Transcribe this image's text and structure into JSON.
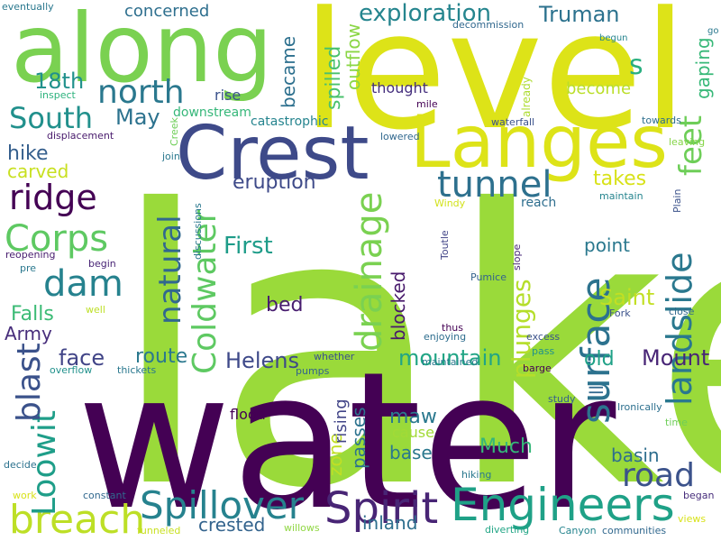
{
  "word_cloud": {
    "background": "#ffffff",
    "words": [
      {
        "text": "lake",
        "color": "#9ada3a",
        "vertical": false
      },
      {
        "text": "water",
        "color": "#440154",
        "vertical": false
      },
      {
        "text": "level",
        "color": "#dde318",
        "vertical": false
      },
      {
        "text": "along",
        "color": "#7ad151",
        "vertical": false
      },
      {
        "text": "Crest",
        "color": "#3e4a89",
        "vertical": false
      },
      {
        "text": "Langes",
        "color": "#dde318",
        "vertical": false
      },
      {
        "text": "Spirit",
        "color": "#482575",
        "vertical": false
      },
      {
        "text": "Engineers",
        "color": "#1fa187",
        "vertical": false
      },
      {
        "text": "Spillover",
        "color": "#26828e",
        "vertical": false
      },
      {
        "text": "breach",
        "color": "#bddf26",
        "vertical": false
      },
      {
        "text": "landslide",
        "color": "#2a788e",
        "vertical": true
      },
      {
        "text": "surface",
        "color": "#2c728e",
        "vertical": true
      },
      {
        "text": "Coldwater",
        "color": "#5ec962",
        "vertical": true
      },
      {
        "text": "tunnel",
        "color": "#2d708e",
        "vertical": false
      },
      {
        "text": "ridge",
        "color": "#440154",
        "vertical": false
      },
      {
        "text": "Corps",
        "color": "#5ec962",
        "vertical": false
      },
      {
        "text": "dam",
        "color": "#26828e",
        "vertical": false
      },
      {
        "text": "north",
        "color": "#2a788e",
        "vertical": false
      },
      {
        "text": "South",
        "color": "#21908c",
        "vertical": false
      },
      {
        "text": "road",
        "color": "#3b528b",
        "vertical": false
      },
      {
        "text": "feet",
        "color": "#6ece58",
        "vertical": true
      },
      {
        "text": "drainage",
        "color": "#7ad151",
        "vertical": true
      },
      {
        "text": "natural",
        "color": "#31688e",
        "vertical": true
      },
      {
        "text": "Loowit",
        "color": "#1f9e89",
        "vertical": true
      },
      {
        "text": "blast",
        "color": "#3b528b",
        "vertical": true
      },
      {
        "text": "plunges",
        "color": "#b5de2b",
        "vertical": true
      },
      {
        "text": "exploration",
        "color": "#25858e",
        "vertical": false
      },
      {
        "text": "Truman",
        "color": "#2c728e",
        "vertical": false
      },
      {
        "text": "18th",
        "color": "#21918c",
        "vertical": false
      },
      {
        "text": "May",
        "color": "#2c728e",
        "vertical": false
      },
      {
        "text": "hike",
        "color": "#355f8d",
        "vertical": false
      },
      {
        "text": "carved",
        "color": "#c8e020",
        "vertical": false
      },
      {
        "text": "Falls",
        "color": "#3bbb75",
        "vertical": false
      },
      {
        "text": "Army",
        "color": "#472d7b",
        "vertical": false
      },
      {
        "text": "First",
        "color": "#1e9c89",
        "vertical": false
      },
      {
        "text": "eruption",
        "color": "#3e4a89",
        "vertical": false
      },
      {
        "text": "takes",
        "color": "#d8e219",
        "vertical": false
      },
      {
        "text": "Saint",
        "color": "#c2df23",
        "vertical": false
      },
      {
        "text": "point",
        "color": "#2a788e",
        "vertical": false
      },
      {
        "text": "mountain",
        "color": "#21a585",
        "vertical": false
      },
      {
        "text": "Mount",
        "color": "#482576",
        "vertical": false
      },
      {
        "text": "Helens",
        "color": "#3e4989",
        "vertical": false
      },
      {
        "text": "face",
        "color": "#414487",
        "vertical": false
      },
      {
        "text": "route",
        "color": "#2a788e",
        "vertical": false
      },
      {
        "text": "old",
        "color": "#1fa187",
        "vertical": false
      },
      {
        "text": "maw",
        "color": "#2a788e",
        "vertical": false
      },
      {
        "text": "Much",
        "color": "#35b779",
        "vertical": false
      },
      {
        "text": "basin",
        "color": "#2e6e8e",
        "vertical": false
      },
      {
        "text": "crested",
        "color": "#33638d",
        "vertical": false
      },
      {
        "text": "inland",
        "color": "#2e6f8e",
        "vertical": false
      },
      {
        "text": "bed",
        "color": "#481d6f",
        "vertical": false
      },
      {
        "text": "base",
        "color": "#2a788e",
        "vertical": false
      },
      {
        "text": "cause",
        "color": "#a2da37",
        "vertical": false
      },
      {
        "text": "flood",
        "color": "#440154",
        "vertical": false
      },
      {
        "text": "s",
        "color": "#29af7f",
        "vertical": false
      },
      {
        "text": "became",
        "color": "#2d708e",
        "vertical": true
      },
      {
        "text": "spilled",
        "color": "#4ac16d",
        "vertical": true
      },
      {
        "text": "outflow",
        "color": "#8bd646",
        "vertical": true
      },
      {
        "text": "gaping",
        "color": "#37b878",
        "vertical": true
      },
      {
        "text": "blocked",
        "color": "#481a6c",
        "vertical": true
      },
      {
        "text": "zone",
        "color": "#c0df25",
        "vertical": true
      },
      {
        "text": "passes",
        "color": "#2c738e",
        "vertical": true
      },
      {
        "text": "rising",
        "color": "#414487",
        "vertical": true
      },
      {
        "text": "ll",
        "color": "#31688e",
        "vertical": true
      },
      {
        "text": "concerned",
        "color": "#2e6f8e",
        "vertical": false
      },
      {
        "text": "become",
        "color": "#bade28",
        "vertical": false
      },
      {
        "text": "thought",
        "color": "#46307e",
        "vertical": false
      },
      {
        "text": "rise",
        "color": "#3b528b",
        "vertical": false
      },
      {
        "text": "downstream",
        "color": "#35b779",
        "vertical": false
      },
      {
        "text": "catastrophic",
        "color": "#25848e",
        "vertical": false
      },
      {
        "text": "reach",
        "color": "#2e6e8e",
        "vertical": false
      },
      {
        "text": "already",
        "color": "#addc30",
        "vertical": true
      },
      {
        "text": "Ironically",
        "color": "#2d708e",
        "vertical": false
      },
      {
        "text": "Toutle",
        "color": "#414487",
        "vertical": true
      },
      {
        "text": "slope",
        "color": "#482878",
        "vertical": true
      },
      {
        "text": "decommission",
        "color": "#31688e",
        "vertical": false
      },
      {
        "text": "eventually",
        "color": "#2a788e",
        "vertical": false
      },
      {
        "text": "inspect",
        "color": "#2db27d",
        "vertical": false
      },
      {
        "text": "displacement",
        "color": "#481a6c",
        "vertical": false
      },
      {
        "text": "Creek",
        "color": "#6ece58",
        "vertical": true
      },
      {
        "text": "join",
        "color": "#2a788e",
        "vertical": false
      },
      {
        "text": "mile",
        "color": "#440154",
        "vertical": false
      },
      {
        "text": "waterfall",
        "color": "#3b528b",
        "vertical": false
      },
      {
        "text": "lowered",
        "color": "#31688e",
        "vertical": false
      },
      {
        "text": "towards",
        "color": "#2e6f8e",
        "vertical": false
      },
      {
        "text": "leaving",
        "color": "#86d549",
        "vertical": false
      },
      {
        "text": "maintain",
        "color": "#25848e",
        "vertical": false
      },
      {
        "text": "Windy",
        "color": "#d2e21b",
        "vertical": false
      },
      {
        "text": "Plain",
        "color": "#3b528b",
        "vertical": true
      },
      {
        "text": "discussions",
        "color": "#2a788e",
        "vertical": true
      },
      {
        "text": "reopening",
        "color": "#481d6f",
        "vertical": false
      },
      {
        "text": "pre",
        "color": "#2a788e",
        "vertical": false
      },
      {
        "text": "begin",
        "color": "#482475",
        "vertical": false
      },
      {
        "text": "Pumice",
        "color": "#33638d",
        "vertical": false
      },
      {
        "text": "Fork",
        "color": "#3b528b",
        "vertical": false
      },
      {
        "text": "close",
        "color": "#31688e",
        "vertical": false
      },
      {
        "text": "well",
        "color": "#bddf26",
        "vertical": false
      },
      {
        "text": "thus",
        "color": "#440154",
        "vertical": false
      },
      {
        "text": "enjoying",
        "color": "#2e6e8e",
        "vertical": false
      },
      {
        "text": "excess",
        "color": "#3b528b",
        "vertical": false
      },
      {
        "text": "pass",
        "color": "#21918c",
        "vertical": false
      },
      {
        "text": "whether",
        "color": "#3b528b",
        "vertical": false
      },
      {
        "text": "overflow",
        "color": "#21918c",
        "vertical": false
      },
      {
        "text": "thickets",
        "color": "#2a788e",
        "vertical": false
      },
      {
        "text": "pumps",
        "color": "#33638d",
        "vertical": false
      },
      {
        "text": "maintained",
        "color": "#2a788e",
        "vertical": false
      },
      {
        "text": "barge",
        "color": "#440154",
        "vertical": false
      },
      {
        "text": "study",
        "color": "#355f8d",
        "vertical": false
      },
      {
        "text": "time",
        "color": "#6ece58",
        "vertical": false
      },
      {
        "text": "hiking",
        "color": "#2a788e",
        "vertical": false
      },
      {
        "text": "decide",
        "color": "#2c728e",
        "vertical": false
      },
      {
        "text": "work",
        "color": "#d8e219",
        "vertical": false
      },
      {
        "text": "constant",
        "color": "#31688e",
        "vertical": false
      },
      {
        "text": "funneled",
        "color": "#c8e020",
        "vertical": false
      },
      {
        "text": "willows",
        "color": "#90d743",
        "vertical": false
      },
      {
        "text": "diverting",
        "color": "#21a585",
        "vertical": false
      },
      {
        "text": "began",
        "color": "#472d7b",
        "vertical": false
      },
      {
        "text": "Canyon",
        "color": "#25848e",
        "vertical": false
      },
      {
        "text": "communities",
        "color": "#31688e",
        "vertical": false
      },
      {
        "text": "views",
        "color": "#d8e219",
        "vertical": false
      },
      {
        "text": "begun",
        "color": "#25848e",
        "vertical": false
      },
      {
        "text": "go",
        "color": "#2a788e",
        "vertical": false
      },
      {
        "text": "Pumice",
        "color": "#2e6e8e",
        "vertical": false
      }
    ]
  }
}
